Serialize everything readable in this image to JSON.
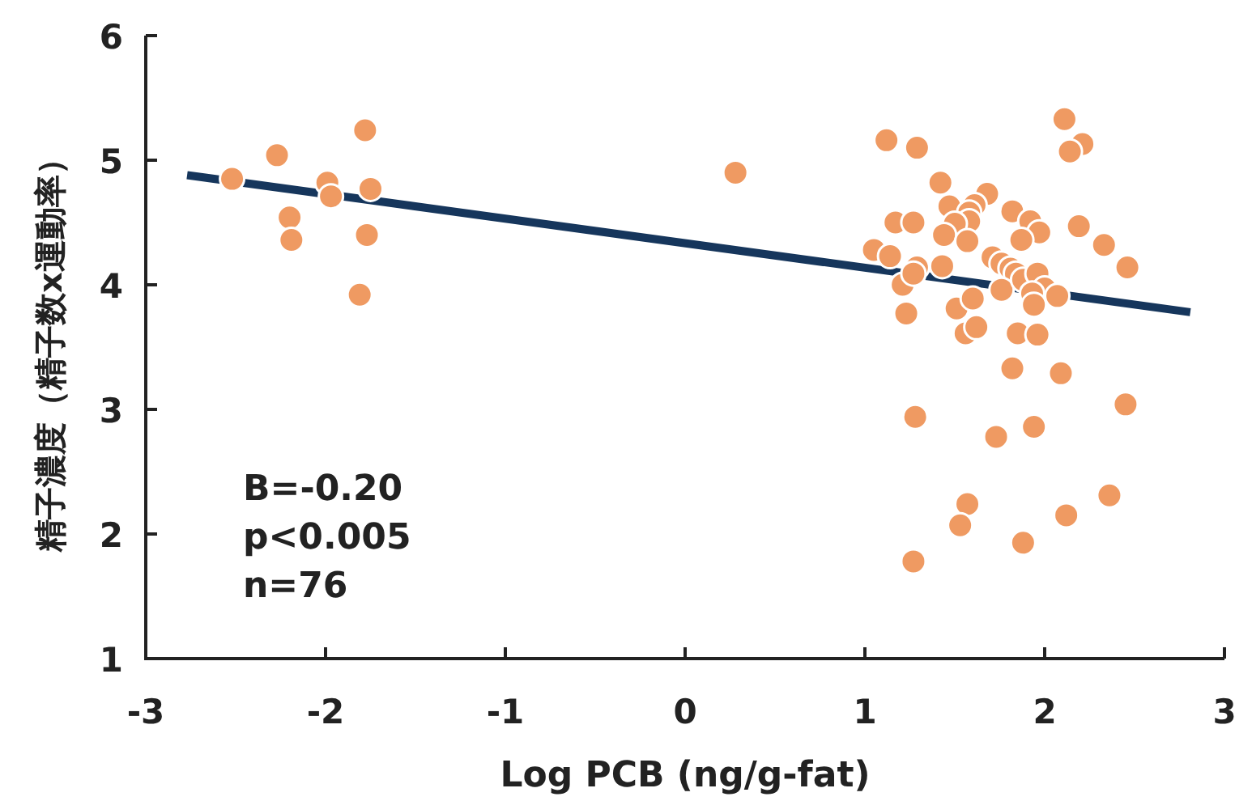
{
  "chart_data": {
    "type": "scatter",
    "xlabel": "Log PCB (ng/g-fat)",
    "ylabel": "精子濃度（精子数x運動率）",
    "xlim": [
      -3,
      3
    ],
    "xticks": [
      -3,
      -2,
      -1,
      0,
      1,
      2,
      3
    ],
    "ylim": [
      1,
      6
    ],
    "yticks": [
      1,
      2,
      3,
      4,
      5,
      6
    ],
    "annotations": [
      "B=-0.20",
      "p<0.005",
      "n=76"
    ],
    "series": [
      {
        "marker": "circle",
        "color": "#ef9a62",
        "x": [
          -2.52,
          -2.27,
          -1.99,
          -1.97,
          -2.2,
          -2.19,
          -1.78,
          -1.75,
          -1.77,
          -1.81,
          0.28,
          2.11,
          2.21,
          2.14,
          1.12,
          1.29,
          1.42,
          1.68,
          1.47,
          1.61,
          1.58,
          1.58,
          1.5,
          1.17,
          1.27,
          1.44,
          1.57,
          1.82,
          1.92,
          1.97,
          1.87,
          2.19,
          2.33,
          2.46,
          1.05,
          1.14,
          1.29,
          1.21,
          1.27,
          1.43,
          1.71,
          1.76,
          1.81,
          1.84,
          1.76,
          1.88,
          1.96,
          2.0,
          2.07,
          1.93,
          1.94,
          1.23,
          1.51,
          1.6,
          1.56,
          1.62,
          1.85,
          1.96,
          1.82,
          2.09,
          2.45,
          1.28,
          1.94,
          1.73,
          1.57,
          1.53,
          2.12,
          2.36,
          1.88,
          1.27
        ],
        "values": [
          4.85,
          5.04,
          4.82,
          4.71,
          4.54,
          4.36,
          5.24,
          4.77,
          4.4,
          3.92,
          4.9,
          5.33,
          5.13,
          5.07,
          5.16,
          5.1,
          4.82,
          4.73,
          4.63,
          4.64,
          4.58,
          4.51,
          4.49,
          4.5,
          4.5,
          4.4,
          4.35,
          4.59,
          4.51,
          4.42,
          4.36,
          4.47,
          4.32,
          4.14,
          4.28,
          4.23,
          4.14,
          4.0,
          4.09,
          4.15,
          4.22,
          4.17,
          4.13,
          4.09,
          3.96,
          4.04,
          4.09,
          3.97,
          3.91,
          3.93,
          3.84,
          3.77,
          3.81,
          3.89,
          3.61,
          3.66,
          3.61,
          3.6,
          3.33,
          3.29,
          3.04,
          2.94,
          2.86,
          2.78,
          2.24,
          2.07,
          2.15,
          2.31,
          1.93,
          1.78
        ]
      },
      {
        "type": "line",
        "color": "#16365c",
        "x": [
          -2.77,
          2.81
        ],
        "values": [
          4.88,
          3.78
        ]
      }
    ]
  }
}
